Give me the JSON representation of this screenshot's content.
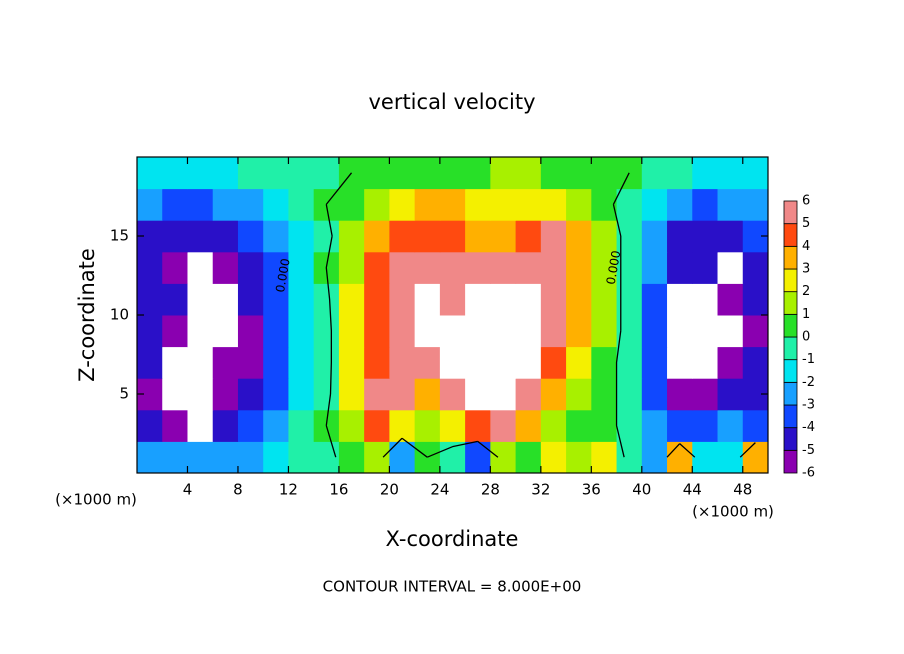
{
  "chart_data": {
    "type": "contour",
    "title": "vertical velocity",
    "xlabel": "X-coordinate",
    "ylabel": "Z-coordinate",
    "x_unit_label": "(×1000 m)",
    "footer": "CONTOUR INTERVAL = 8.000E+00",
    "xlim": [
      0,
      50
    ],
    "ylim": [
      0,
      20
    ],
    "xticks": [
      4,
      8,
      12,
      16,
      20,
      24,
      28,
      32,
      36,
      40,
      44,
      48
    ],
    "yticks": [
      5,
      10,
      15
    ],
    "x": [
      1,
      3,
      5,
      7,
      9,
      11,
      13,
      15,
      17,
      19,
      21,
      23,
      25,
      27,
      29,
      31,
      33,
      35,
      37,
      39,
      41,
      43,
      45,
      47,
      49
    ],
    "z": [
      1,
      3,
      5,
      7,
      9,
      11,
      13,
      15,
      17,
      19
    ],
    "values": [
      [
        -3,
        -3,
        -3,
        -3,
        -2.5,
        -1.5,
        -0.5,
        -0.3,
        0.5,
        1,
        -3,
        0,
        -1,
        -4,
        1,
        0,
        2,
        1,
        2,
        -0.5,
        -3,
        3,
        -2,
        -2,
        3
      ],
      [
        -5,
        -6,
        -7,
        -5,
        -4,
        -3,
        -1,
        0,
        1.5,
        4,
        2,
        1,
        2,
        4,
        5,
        3,
        1.5,
        0.5,
        0.3,
        -0.3,
        -3,
        -4,
        -4,
        -3,
        -3.5
      ],
      [
        -6,
        -7,
        -7,
        -6,
        -5,
        -3.5,
        -1.5,
        -0.5,
        2.5,
        6,
        5,
        3,
        5,
        7,
        7,
        5,
        3,
        1.5,
        0.5,
        -0.5,
        -4,
        -6,
        -6,
        -5,
        -4.5
      ],
      [
        -5,
        -7,
        -7,
        -6,
        -5.5,
        -4,
        -2,
        -0.5,
        2,
        4.5,
        6,
        5,
        7,
        7,
        7,
        7,
        4.5,
        2,
        0.5,
        -0.5,
        -4,
        -7,
        -7,
        -6,
        -5
      ],
      [
        -5,
        -6,
        -7,
        -7,
        -6,
        -4,
        -2,
        -0.5,
        2,
        4.5,
        5,
        7,
        7,
        7,
        7,
        7,
        5,
        3,
        1,
        -0.5,
        -4,
        -7,
        -7,
        -7,
        -5.5
      ],
      [
        -5,
        -5,
        -7,
        -7,
        -5,
        -4,
        -2,
        -0.3,
        2,
        4.5,
        5.5,
        7,
        6,
        7,
        7,
        7,
        5,
        3,
        1,
        -0.5,
        -3.5,
        -7,
        -7,
        -6,
        -5
      ],
      [
        -5,
        -5.5,
        -7,
        -6,
        -5,
        -3.5,
        -2,
        0,
        1.5,
        4,
        5,
        5,
        5,
        5,
        5.5,
        6,
        5,
        3.5,
        1,
        -0.5,
        -3,
        -5,
        -5,
        -7,
        -5
      ],
      [
        -4.5,
        -5,
        -5,
        -5,
        -4,
        -3,
        -1.5,
        -0.3,
        1,
        3,
        4,
        4.5,
        4,
        3.5,
        3.5,
        4.5,
        5,
        3,
        1,
        -0.5,
        -3,
        -4.5,
        -5,
        -5,
        -4
      ],
      [
        -3,
        -3.5,
        -3.5,
        -3,
        -2.5,
        -2,
        -1,
        0,
        0.5,
        1,
        2.5,
        3,
        3,
        2.5,
        2,
        2,
        2,
        1.5,
        0.3,
        -0.5,
        -2,
        -3,
        -3.5,
        -3,
        -2.5
      ],
      [
        -2,
        -2,
        -2,
        -1.5,
        -1,
        -0.5,
        -0.5,
        -0.3,
        0,
        0,
        0.3,
        0.5,
        0.8,
        0.8,
        1,
        1,
        0.8,
        0.5,
        0.3,
        0,
        -0.5,
        -1,
        -1.5,
        -2,
        -2
      ]
    ],
    "colorbar_ticks": [
      -6,
      -5,
      -4,
      -3,
      -2,
      -1,
      0,
      1,
      2,
      3,
      4,
      5,
      6
    ],
    "colors": [
      "#8a00b0",
      "#2a10c8",
      "#1048ff",
      "#18a0ff",
      "#00e4f0",
      "#20f0a8",
      "#28e028",
      "#a8f000",
      "#f4f000",
      "#ffb000",
      "#ff4a10",
      "#f08888"
    ],
    "over_color": "#ffffff",
    "contour_levels": [
      {
        "value": 0,
        "label": "0.000"
      }
    ]
  }
}
